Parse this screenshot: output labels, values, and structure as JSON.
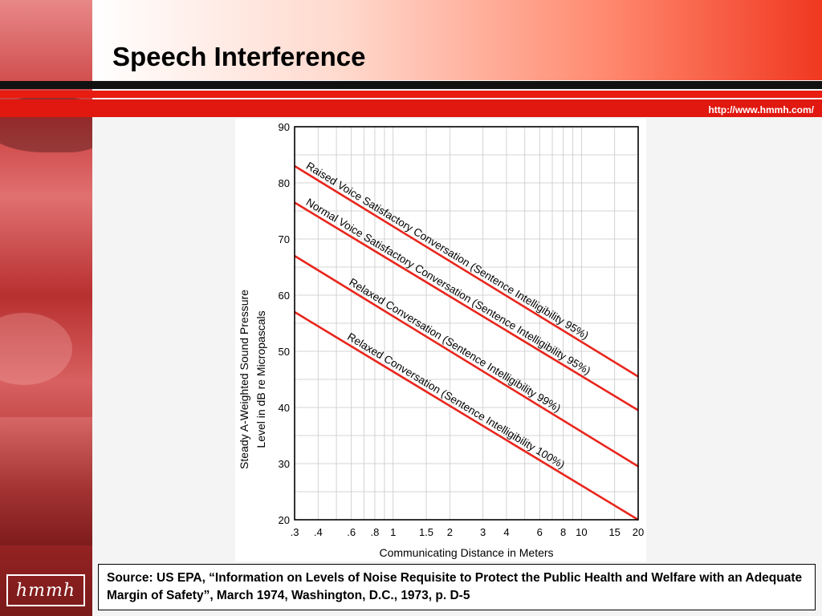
{
  "slide": {
    "title": "Speech Interference",
    "url": "http://www.hmmh.com/",
    "logo_text": "hmmh",
    "source": "Source:  US EPA, “Information on Levels of Noise Requisite to Protect the Public Health and Welfare with an Adequate Margin of Safety”, March 1974, Washington, D.C., 1973, p. D-5"
  },
  "colors": {
    "accent_red": "#e01810",
    "line_red": "#e8261c",
    "grid": "#c8c8c8"
  },
  "chart_data": {
    "type": "line",
    "title": "",
    "xlabel": "Communicating Distance in Meters",
    "ylabel_line1": "Steady A-Weighted Sound Pressure",
    "ylabel_line2": "Level in dB re Micropascals",
    "x_scale": "log",
    "xlim": [
      0.3,
      20
    ],
    "ylim": [
      20,
      90
    ],
    "grid": true,
    "x_ticks": [
      0.3,
      0.4,
      0.6,
      0.8,
      1,
      1.5,
      2,
      3,
      4,
      6,
      8,
      10,
      15,
      20
    ],
    "x_tick_labels": [
      ".3",
      ".4",
      ".6",
      ".8",
      "1",
      "1.5",
      "2",
      "3",
      "4",
      "6",
      "8",
      "10",
      "15",
      "20"
    ],
    "x_grid": [
      0.3,
      0.4,
      0.5,
      0.6,
      0.7,
      0.8,
      0.9,
      1,
      1.5,
      2,
      3,
      4,
      5,
      6,
      7,
      8,
      9,
      10,
      15,
      20
    ],
    "y_ticks": [
      20,
      30,
      40,
      50,
      60,
      70,
      80,
      90
    ],
    "y_grid": [
      20,
      25,
      30,
      35,
      40,
      45,
      50,
      55,
      60,
      65,
      70,
      75,
      80,
      85,
      90
    ],
    "series": [
      {
        "name": "Raised Voice Satisfactory Conversation (Sentence Intelligibility 95%)",
        "x": [
          0.3,
          20
        ],
        "y": [
          83,
          45.5
        ]
      },
      {
        "name": "Normal Voice Satisfactory Conversation (Sentence Intelligibility 95%)",
        "x": [
          0.3,
          20
        ],
        "y": [
          76.5,
          39.5
        ]
      },
      {
        "name": "Relaxed Conversation (Sentence Intelligibility 99%)",
        "x": [
          0.3,
          20
        ],
        "y": [
          67,
          29.5
        ]
      },
      {
        "name": "Relaxed Conversation (Sentence Intelligibility 100%)",
        "x": [
          0.3,
          20
        ],
        "y": [
          57,
          20
        ]
      }
    ]
  }
}
